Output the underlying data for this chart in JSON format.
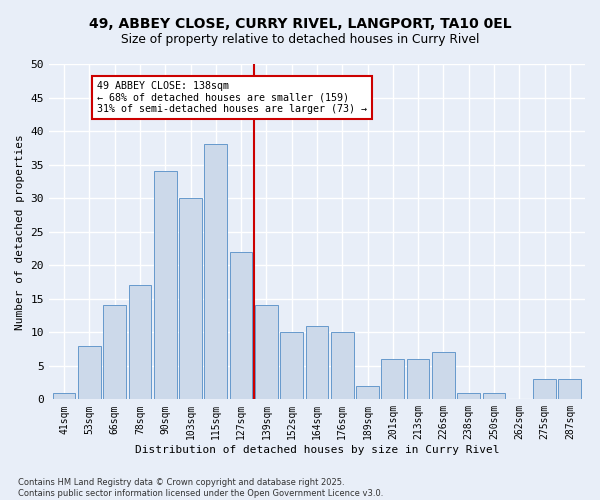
{
  "title_line1": "49, ABBEY CLOSE, CURRY RIVEL, LANGPORT, TA10 0EL",
  "title_line2": "Size of property relative to detached houses in Curry Rivel",
  "xlabel": "Distribution of detached houses by size in Curry Rivel",
  "ylabel": "Number of detached properties",
  "categories": [
    "41sqm",
    "53sqm",
    "66sqm",
    "78sqm",
    "90sqm",
    "103sqm",
    "115sqm",
    "127sqm",
    "139sqm",
    "152sqm",
    "164sqm",
    "176sqm",
    "189sqm",
    "201sqm",
    "213sqm",
    "226sqm",
    "238sqm",
    "250sqm",
    "262sqm",
    "275sqm",
    "287sqm"
  ],
  "values": [
    1,
    8,
    14,
    17,
    34,
    30,
    38,
    22,
    14,
    10,
    11,
    10,
    2,
    6,
    6,
    7,
    1,
    1,
    0,
    3,
    3
  ],
  "bar_color": "#ccd9ea",
  "bar_edge_color": "#6699cc",
  "vline_color": "#cc0000",
  "annotation_text": "49 ABBEY CLOSE: 138sqm\n← 68% of detached houses are smaller (159)\n31% of semi-detached houses are larger (73) →",
  "annotation_box_color": "#ffffff",
  "annotation_box_edge_color": "#cc0000",
  "ylim": [
    0,
    50
  ],
  "yticks": [
    0,
    5,
    10,
    15,
    20,
    25,
    30,
    35,
    40,
    45,
    50
  ],
  "background_color": "#e8eef8",
  "grid_color": "#ffffff",
  "footer": "Contains HM Land Registry data © Crown copyright and database right 2025.\nContains public sector information licensed under the Open Government Licence v3.0."
}
